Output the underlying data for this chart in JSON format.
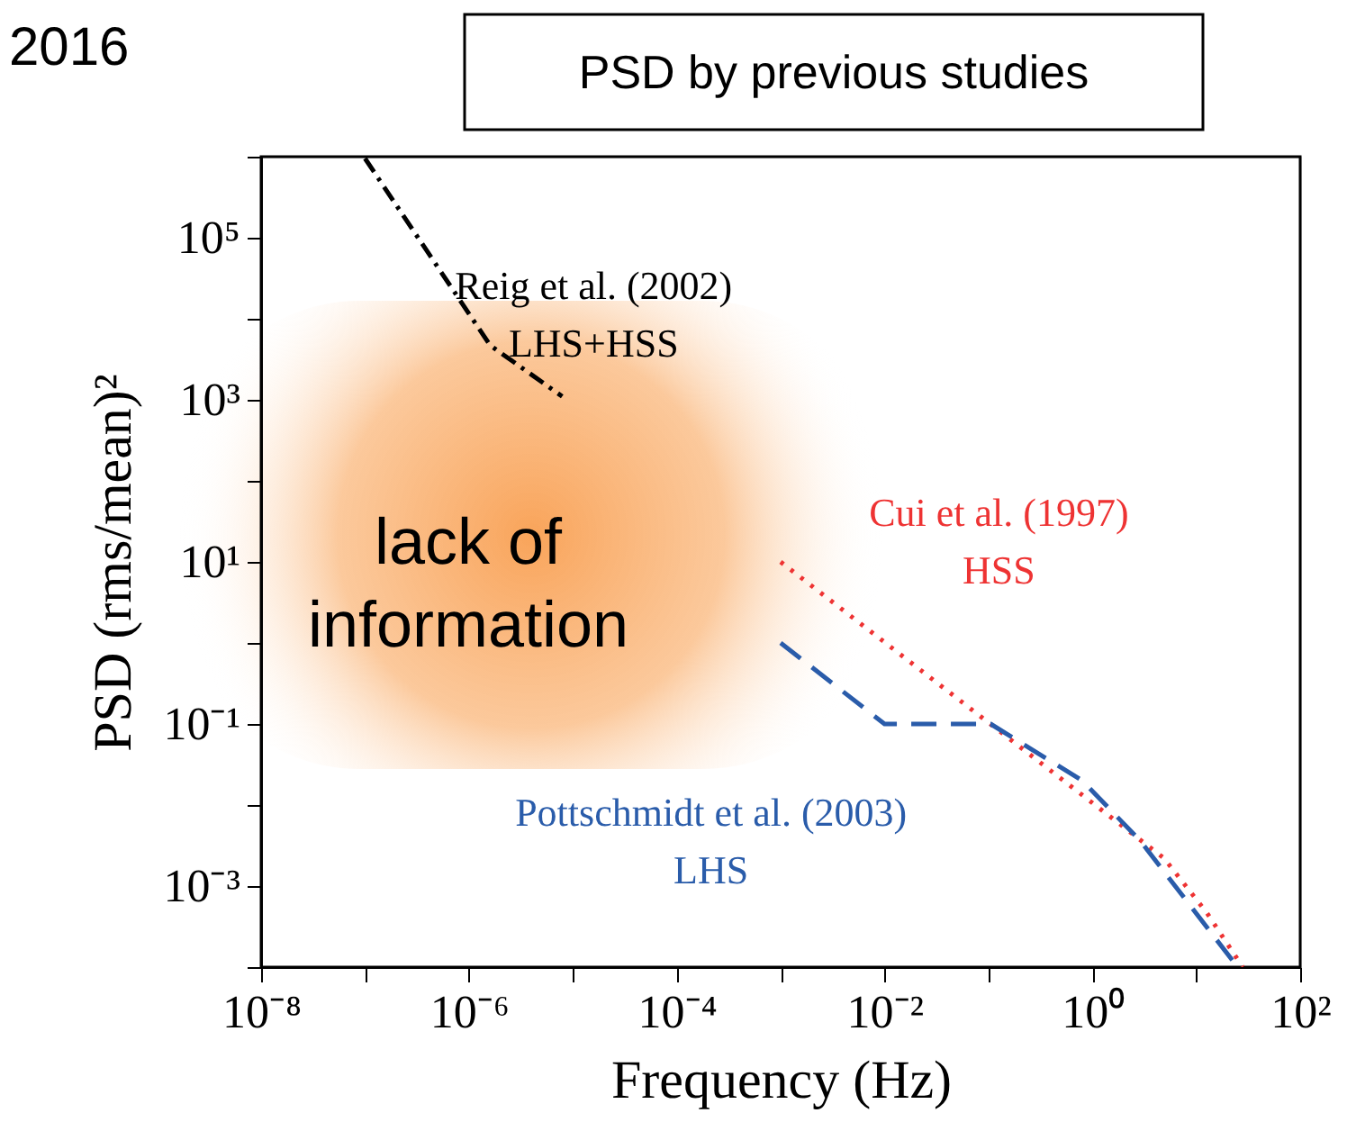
{
  "chart_data": {
    "type": "line",
    "title": "PSD by previous studies",
    "xlabel": "Frequency (Hz)",
    "ylabel": "PSD (rms/mean)²",
    "log": "xy",
    "grid": false,
    "legend": false,
    "annotations": [
      "2016",
      "lack of\ninformation"
    ],
    "xlim": [
      1e-08,
      100
    ],
    "ylim": [
      0.0001,
      1000000
    ],
    "xticks": [
      {
        "value": 1e-08,
        "label": "10⁻⁸"
      },
      {
        "value": 1e-07,
        "label": null
      },
      {
        "value": 1e-06,
        "label": "10⁻⁶"
      },
      {
        "value": 1e-05,
        "label": null
      },
      {
        "value": 0.0001,
        "label": "10⁻⁴"
      },
      {
        "value": 0.001,
        "label": null
      },
      {
        "value": 0.01,
        "label": "10⁻²"
      },
      {
        "value": 0.1,
        "label": null
      },
      {
        "value": 1,
        "label": "10⁰"
      },
      {
        "value": 10,
        "label": null
      },
      {
        "value": 100,
        "label": "10²"
      }
    ],
    "yticks": [
      {
        "value": 0.0001,
        "label": null
      },
      {
        "value": 0.001,
        "label": "10⁻³"
      },
      {
        "value": 0.01,
        "label": null
      },
      {
        "value": 0.1,
        "label": "10⁻¹"
      },
      {
        "value": 1,
        "label": null
      },
      {
        "value": 10,
        "label": "10¹"
      },
      {
        "value": 100,
        "label": null
      },
      {
        "value": 1000,
        "label": "10³"
      },
      {
        "value": 10000,
        "label": null
      },
      {
        "value": 100000,
        "label": "10⁵"
      },
      {
        "value": 1000000,
        "label": null
      }
    ],
    "series": [
      {
        "name": "Reig et al. (2002)\nLHS+HSS",
        "color": "#000000",
        "line_style": "dashdot",
        "x": [
          1e-07,
          1.6e-06,
          7.9e-06
        ],
        "values": [
          950000,
          4700,
          1100
        ]
      },
      {
        "name": "Cui et al. (1997)\nHSS",
        "color": "#ee3333",
        "line_style": "dotted",
        "x": [
          0.001,
          4.9,
          12.6,
          28
        ],
        "values": [
          10,
          0.0022,
          0.00047,
          0.0001
        ]
      },
      {
        "name": "Pottschmidt et al. (2003)\nLHS",
        "color": "#2a5caa",
        "line_style": "dashed",
        "x": [
          0.001,
          0.01,
          0.105,
          0.8,
          2.9,
          25
        ],
        "values": [
          1,
          0.1,
          0.1,
          0.02,
          0.0036,
          0.0001
        ]
      }
    ]
  }
}
